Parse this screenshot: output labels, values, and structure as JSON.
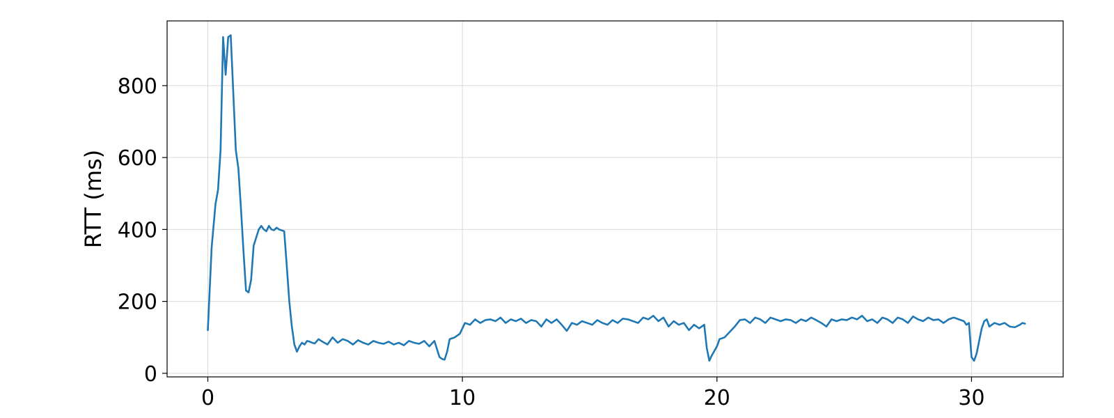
{
  "chart_data": {
    "type": "line",
    "title": "",
    "xlabel": "",
    "ylabel": "RTT (ms)",
    "xlim": [
      -1.6,
      33.6
    ],
    "ylim": [
      -10,
      980
    ],
    "xticks": [
      0,
      10,
      20,
      30
    ],
    "yticks": [
      0,
      200,
      400,
      600,
      800
    ],
    "grid": true,
    "legend": "none",
    "line_color": "#1f77b4",
    "grid_color": "#d9d9d9",
    "series": [
      {
        "x": [
          0.0,
          0.15,
          0.3,
          0.4,
          0.5,
          0.6,
          0.7,
          0.8,
          0.9,
          1.0,
          1.1,
          1.2,
          1.3,
          1.4,
          1.5,
          1.6,
          1.7,
          1.8,
          2.0,
          2.1,
          2.2,
          2.3,
          2.4,
          2.5,
          2.6,
          2.7,
          2.8,
          3.0,
          3.1,
          3.2,
          3.3,
          3.4,
          3.5,
          3.6,
          3.7,
          3.8,
          3.9,
          4.0,
          4.1,
          4.2,
          4.35,
          4.5,
          4.7,
          4.9,
          5.1,
          5.3,
          5.5,
          5.7,
          5.9,
          6.1,
          6.3,
          6.5,
          6.7,
          6.9,
          7.1,
          7.3,
          7.5,
          7.7,
          7.9,
          8.1,
          8.3,
          8.5,
          8.7,
          8.9,
          9.1,
          9.2,
          9.3,
          9.4,
          9.5,
          9.7,
          9.9,
          10.0,
          10.1,
          10.3,
          10.5,
          10.7,
          10.9,
          11.1,
          11.3,
          11.5,
          11.7,
          11.9,
          12.1,
          12.3,
          12.5,
          12.7,
          12.9,
          13.1,
          13.3,
          13.5,
          13.7,
          13.9,
          14.1,
          14.3,
          14.5,
          14.7,
          14.9,
          15.1,
          15.3,
          15.5,
          15.7,
          15.9,
          16.1,
          16.3,
          16.5,
          16.7,
          16.9,
          17.1,
          17.3,
          17.5,
          17.7,
          17.9,
          18.1,
          18.3,
          18.5,
          18.7,
          18.9,
          19.1,
          19.3,
          19.5,
          19.6,
          19.7,
          19.8,
          20.0,
          20.1,
          20.3,
          20.5,
          20.7,
          20.9,
          21.1,
          21.3,
          21.5,
          21.7,
          21.9,
          22.1,
          22.3,
          22.5,
          22.7,
          22.9,
          23.1,
          23.3,
          23.5,
          23.7,
          23.9,
          24.1,
          24.3,
          24.5,
          24.7,
          24.9,
          25.1,
          25.3,
          25.5,
          25.7,
          25.9,
          26.1,
          26.3,
          26.5,
          26.7,
          26.9,
          27.1,
          27.3,
          27.5,
          27.7,
          27.9,
          28.1,
          28.3,
          28.5,
          28.7,
          28.9,
          29.1,
          29.3,
          29.5,
          29.7,
          29.8,
          29.9,
          30.0,
          30.1,
          30.2,
          30.3,
          30.4,
          30.5,
          30.6,
          30.7,
          30.9,
          31.1,
          31.3,
          31.5,
          31.7,
          31.9,
          32.0,
          32.1
        ],
        "y": [
          120,
          350,
          470,
          510,
          620,
          935,
          830,
          935,
          940,
          780,
          620,
          570,
          460,
          340,
          230,
          225,
          260,
          355,
          400,
          410,
          400,
          395,
          410,
          400,
          398,
          405,
          400,
          395,
          300,
          200,
          130,
          80,
          60,
          75,
          85,
          80,
          90,
          88,
          85,
          83,
          95,
          88,
          80,
          100,
          85,
          95,
          90,
          80,
          92,
          85,
          80,
          90,
          85,
          82,
          88,
          80,
          85,
          78,
          90,
          85,
          82,
          90,
          75,
          90,
          45,
          40,
          38,
          60,
          95,
          100,
          110,
          125,
          140,
          135,
          150,
          140,
          148,
          150,
          145,
          155,
          140,
          150,
          145,
          152,
          140,
          148,
          145,
          130,
          150,
          140,
          150,
          135,
          118,
          140,
          135,
          145,
          140,
          135,
          148,
          140,
          135,
          148,
          140,
          152,
          150,
          145,
          140,
          155,
          150,
          160,
          145,
          155,
          130,
          145,
          135,
          140,
          120,
          135,
          125,
          135,
          70,
          35,
          50,
          75,
          95,
          100,
          115,
          130,
          148,
          150,
          140,
          155,
          150,
          140,
          155,
          150,
          145,
          150,
          148,
          140,
          150,
          145,
          155,
          148,
          140,
          130,
          150,
          145,
          150,
          148,
          155,
          150,
          160,
          145,
          150,
          140,
          155,
          150,
          140,
          155,
          150,
          140,
          158,
          150,
          145,
          155,
          148,
          150,
          140,
          150,
          155,
          150,
          145,
          135,
          140,
          45,
          35,
          55,
          90,
          125,
          145,
          150,
          130,
          140,
          135,
          140,
          130,
          128,
          135,
          140,
          138
        ]
      }
    ]
  }
}
